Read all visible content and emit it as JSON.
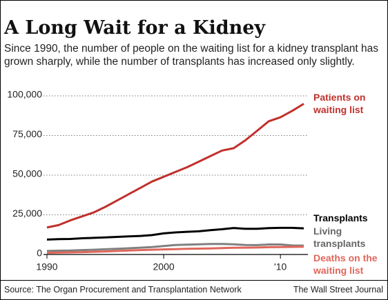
{
  "chart_data": {
    "type": "line",
    "title": "A Long Wait for a Kidney",
    "subtitle": "Since 1990, the number of people on the waiting list for a kidney transplant has grown sharply, while the number of transplants has increased only slightly.",
    "x": [
      1990,
      1991,
      1992,
      1993,
      1994,
      1995,
      1996,
      1997,
      1998,
      1999,
      2000,
      2001,
      2002,
      2003,
      2004,
      2005,
      2006,
      2007,
      2008,
      2009,
      2010,
      2011,
      2012
    ],
    "series": [
      {
        "name": "Patients on waiting list",
        "color": "#c0302b",
        "values": [
          17000,
          18500,
          21500,
          24000,
          26500,
          30000,
          34000,
          38000,
          42000,
          46000,
          49000,
          52000,
          55000,
          58500,
          62000,
          65500,
          67000,
          72000,
          78000,
          84000,
          86500,
          90500,
          95000
        ]
      },
      {
        "name": "Transplants",
        "color": "#000000",
        "values": [
          9400,
          9700,
          9800,
          10200,
          10500,
          10800,
          11100,
          11400,
          11700,
          12200,
          13300,
          13900,
          14300,
          14600,
          15300,
          15900,
          16700,
          16200,
          16200,
          16600,
          16800,
          16800,
          16500
        ]
      },
      {
        "name": "Living transplants",
        "color": "#808080",
        "values": [
          2200,
          2400,
          2500,
          2800,
          3000,
          3300,
          3600,
          3900,
          4300,
          4700,
          5300,
          6000,
          6200,
          6400,
          6600,
          6600,
          6400,
          6000,
          5900,
          6300,
          6300,
          5700,
          5600
        ]
      },
      {
        "name": "Deaths on the waiting list",
        "color": "#e0665a",
        "values": [
          1000,
          1200,
          1300,
          1500,
          1700,
          1900,
          2200,
          2500,
          2800,
          3000,
          3200,
          3400,
          3600,
          3700,
          3800,
          4000,
          4200,
          4300,
          4400,
          4600,
          4700,
          4800,
          4900
        ]
      }
    ],
    "xlim": [
      1990,
      2012
    ],
    "xticks": [
      1990,
      2000,
      {
        "value": 2010,
        "label": "'10"
      }
    ],
    "ylim": [
      0,
      100000
    ],
    "yticks": [
      0,
      {
        "value": 25000,
        "label": "25,000"
      },
      {
        "value": 50000,
        "label": "50,000"
      },
      {
        "value": 75000,
        "label": "75,000"
      },
      {
        "value": 100000,
        "label": "100,000"
      }
    ],
    "grid": true,
    "source": "Source: The Organ Procurement and Transplantation Network",
    "credit": "The Wall Street Journal"
  }
}
